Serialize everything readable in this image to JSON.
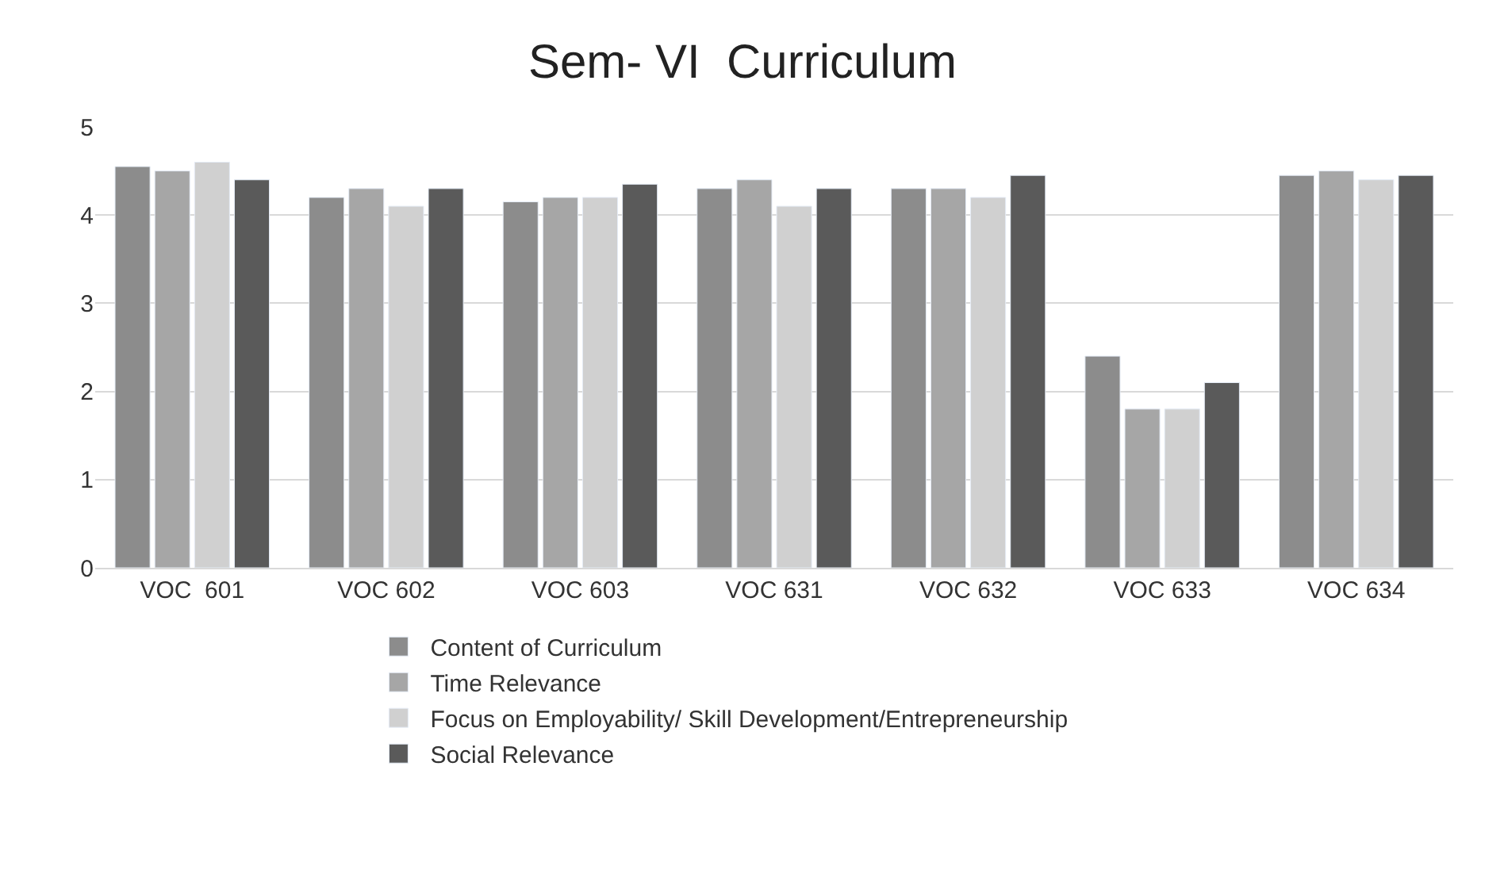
{
  "chart_data": {
    "type": "bar",
    "title": "Sem- VI  Curriculum",
    "categories": [
      "VOC  601",
      "VOC 602",
      "VOC 603",
      "VOC 631",
      "VOC 632",
      "VOC 633",
      "VOC 634"
    ],
    "series": [
      {
        "name": "Content of Curriculum",
        "color": "#8c8c8c",
        "values": [
          4.55,
          4.2,
          4.15,
          4.3,
          4.3,
          2.4,
          4.45
        ]
      },
      {
        "name": "Time Relevance",
        "color": "#a6a6a6",
        "values": [
          4.5,
          4.3,
          4.2,
          4.4,
          4.3,
          1.8,
          4.5
        ]
      },
      {
        "name": "Focus on Employability/ Skill Development/Entrepreneurship",
        "color": "#d0d0d0",
        "values": [
          4.6,
          4.1,
          4.2,
          4.1,
          4.2,
          1.8,
          4.4
        ]
      },
      {
        "name": "Social Relevance",
        "color": "#5a5a5a",
        "values": [
          4.4,
          4.3,
          4.35,
          4.3,
          4.45,
          2.1,
          4.45
        ]
      }
    ],
    "ylim": [
      0,
      5
    ],
    "yticks": [
      0,
      1,
      2,
      3,
      4,
      5
    ],
    "grid": "y",
    "legend": "bottom"
  }
}
